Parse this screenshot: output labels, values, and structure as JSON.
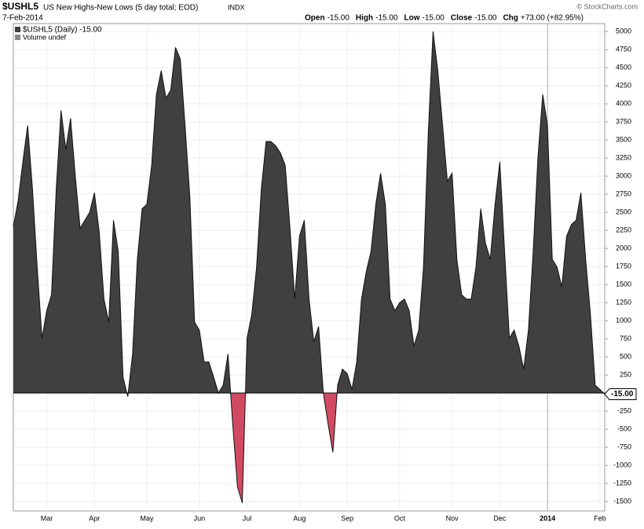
{
  "chart_data": {
    "type": "area",
    "symbol": "$USHL5",
    "title": "US New Highs-New Lows (5 day total; EOD)",
    "exchange": "INDX",
    "date": "7-Feb-2014",
    "copyright": "© StockCharts.com",
    "ohlc": [
      {
        "label": "Open",
        "value": "-15.00"
      },
      {
        "label": "High",
        "value": "-15.00"
      },
      {
        "label": "Low",
        "value": "-15.00"
      },
      {
        "label": "Close",
        "value": "-15.00"
      },
      {
        "label": "Chg",
        "value": "+73.00 (+82.95%)"
      }
    ],
    "legend": [
      "$USHL5 (Daily) -15.00",
      "Volume undef"
    ],
    "last_value_label": "-15.00",
    "color": "#404040",
    "negative_color": "#d24a62",
    "categories": [
      null,
      null,
      null,
      null,
      null,
      null,
      null,
      "Mar",
      null,
      null,
      null,
      null,
      null,
      null,
      null,
      null,
      null,
      "Apr",
      null,
      null,
      null,
      null,
      null,
      null,
      null,
      null,
      null,
      null,
      "May",
      null,
      null,
      null,
      null,
      null,
      null,
      null,
      null,
      null,
      null,
      "Jun",
      null,
      null,
      null,
      null,
      null,
      null,
      null,
      null,
      null,
      "Jul",
      null,
      null,
      null,
      null,
      null,
      null,
      null,
      null,
      null,
      null,
      "Aug",
      null,
      null,
      null,
      null,
      null,
      null,
      null,
      null,
      null,
      "Sep",
      null,
      null,
      null,
      null,
      null,
      null,
      null,
      null,
      null,
      null,
      "Oct",
      null,
      null,
      null,
      null,
      null,
      null,
      null,
      null,
      null,
      null,
      "Nov",
      null,
      null,
      null,
      null,
      null,
      null,
      null,
      null,
      null,
      "Dec",
      null,
      null,
      null,
      null,
      null,
      null,
      null,
      null,
      null,
      "2014",
      null,
      null,
      null,
      null,
      null,
      null,
      null,
      null,
      null,
      null,
      "Feb",
      null
    ],
    "values": [
      2300,
      2660,
      3200,
      3700,
      2830,
      1740,
      760,
      1140,
      1360,
      2830,
      3910,
      3370,
      3800,
      2990,
      2280,
      2390,
      2500,
      2770,
      2230,
      1300,
      980,
      2390,
      1960,
      220,
      -50,
      540,
      1850,
      2550,
      2610,
      3150,
      4130,
      4460,
      4080,
      4190,
      4780,
      4620,
      3700,
      2720,
      980,
      870,
      430,
      430,
      220,
      0,
      110,
      540,
      -430,
      -1300,
      -1520,
      760,
      1090,
      1740,
      2830,
      3480,
      3480,
      3420,
      3320,
      3150,
      2280,
      1300,
      2170,
      2390,
      1300,
      710,
      920,
      0,
      -430,
      -820,
      110,
      330,
      270,
      50,
      430,
      1300,
      1680,
      1960,
      2610,
      3040,
      2610,
      1300,
      1140,
      1250,
      1300,
      1140,
      650,
      870,
      1740,
      3590,
      5000,
      4460,
      3700,
      2930,
      3040,
      1850,
      1360,
      1300,
      1300,
      1740,
      2550,
      2070,
      1850,
      2610,
      3200,
      1960,
      760,
      870,
      650,
      330,
      870,
      1960,
      3260,
      4130,
      3700,
      1850,
      1740,
      1470,
      2170,
      2330,
      2390,
      2770,
      1850,
      1090,
      110,
      50,
      -15
    ],
    "ylim": [
      -1630,
      5110
    ],
    "yticks": [
      -1500,
      -1250,
      -1000,
      -750,
      -500,
      -250,
      250,
      500,
      750,
      1000,
      1250,
      1500,
      1750,
      2000,
      2250,
      2500,
      2750,
      3000,
      3250,
      3500,
      3750,
      4000,
      4250,
      4500,
      4750,
      5000
    ]
  }
}
